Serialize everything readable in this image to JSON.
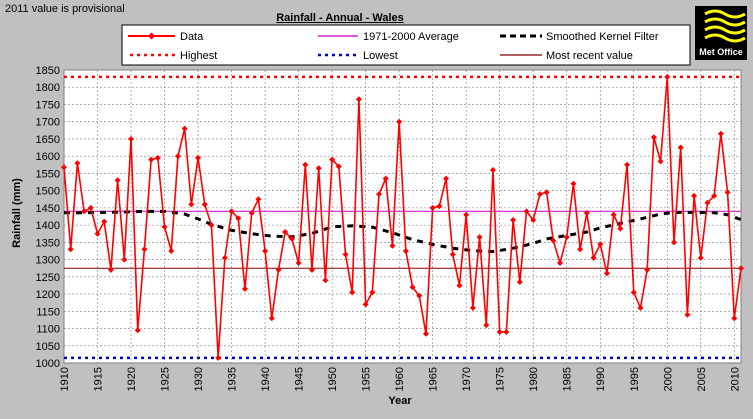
{
  "note": "2011 value is provisional",
  "brand": {
    "name": "Met Office"
  },
  "colors": {
    "data": "#ff0000",
    "average": "#d61bd6",
    "kernel": "#000000",
    "highest": "#ff0000",
    "lowest": "#0000cc",
    "recent": "#800000"
  },
  "chart_data": {
    "type": "line",
    "title": "Rainfall - Annual - Wales",
    "xlabel": "Year",
    "ylabel": "Rainfall (mm)",
    "xlim": [
      1910,
      2011
    ],
    "ylim": [
      1000,
      1850
    ],
    "xticks": [
      1910,
      1915,
      1920,
      1925,
      1930,
      1935,
      1940,
      1945,
      1950,
      1955,
      1960,
      1965,
      1970,
      1975,
      1980,
      1985,
      1990,
      1995,
      2000,
      2005,
      2010
    ],
    "yticks": [
      1000,
      1050,
      1100,
      1150,
      1200,
      1250,
      1300,
      1350,
      1400,
      1450,
      1500,
      1550,
      1600,
      1650,
      1700,
      1750,
      1800,
      1850
    ],
    "legend": [
      "Data",
      "1971-2000 Average",
      "Smoothed Kernel Filter",
      "Highest",
      "Lowest",
      "Most recent value"
    ],
    "grid": true,
    "x": [
      1910,
      1911,
      1912,
      1913,
      1914,
      1915,
      1916,
      1917,
      1918,
      1919,
      1920,
      1921,
      1922,
      1923,
      1924,
      1925,
      1926,
      1927,
      1928,
      1929,
      1930,
      1931,
      1932,
      1933,
      1934,
      1935,
      1936,
      1937,
      1938,
      1939,
      1940,
      1941,
      1942,
      1943,
      1944,
      1945,
      1946,
      1947,
      1948,
      1949,
      1950,
      1951,
      1952,
      1953,
      1954,
      1955,
      1956,
      1957,
      1958,
      1959,
      1960,
      1961,
      1962,
      1963,
      1964,
      1965,
      1966,
      1967,
      1968,
      1969,
      1970,
      1971,
      1972,
      1973,
      1974,
      1975,
      1976,
      1977,
      1978,
      1979,
      1980,
      1981,
      1982,
      1983,
      1984,
      1985,
      1986,
      1987,
      1988,
      1989,
      1990,
      1991,
      1992,
      1993,
      1994,
      1995,
      1996,
      1997,
      1998,
      1999,
      2000,
      2001,
      2002,
      2003,
      2004,
      2005,
      2006,
      2007,
      2008,
      2009,
      2010,
      2011
    ],
    "values": [
      1568,
      1330,
      1580,
      1440,
      1450,
      1375,
      1410,
      1270,
      1530,
      1300,
      1650,
      1095,
      1330,
      1590,
      1595,
      1395,
      1325,
      1600,
      1680,
      1460,
      1595,
      1460,
      1400,
      1015,
      1305,
      1440,
      1420,
      1215,
      1435,
      1475,
      1325,
      1130,
      1270,
      1380,
      1360,
      1290,
      1575,
      1270,
      1565,
      1240,
      1590,
      1570,
      1315,
      1205,
      1765,
      1170,
      1205,
      1490,
      1535,
      1340,
      1700,
      1325,
      1220,
      1195,
      1085,
      1450,
      1455,
      1535,
      1315,
      1225,
      1430,
      1160,
      1365,
      1110,
      1560,
      1090,
      1090,
      1415,
      1235,
      1440,
      1415,
      1490,
      1495,
      1355,
      1290,
      1365,
      1520,
      1330,
      1435,
      1305,
      1345,
      1260,
      1430,
      1390,
      1575,
      1205,
      1160,
      1270,
      1655,
      1585,
      1830,
      1350,
      1625,
      1140,
      1485,
      1305,
      1465,
      1485,
      1665,
      1495,
      1130,
      1275
    ],
    "average": 1440,
    "highest": 1830,
    "lowest": 1015,
    "most_recent": 1275,
    "kernel": [
      [
        1910,
        1436
      ],
      [
        1913,
        1436
      ],
      [
        1916,
        1437
      ],
      [
        1919,
        1438
      ],
      [
        1922,
        1440
      ],
      [
        1925,
        1440
      ],
      [
        1928,
        1432
      ],
      [
        1930,
        1418
      ],
      [
        1932,
        1402
      ],
      [
        1935,
        1385
      ],
      [
        1938,
        1375
      ],
      [
        1941,
        1368
      ],
      [
        1944,
        1366
      ],
      [
        1947,
        1376
      ],
      [
        1950,
        1395
      ],
      [
        1953,
        1398
      ],
      [
        1956,
        1394
      ],
      [
        1959,
        1378
      ],
      [
        1962,
        1358
      ],
      [
        1965,
        1344
      ],
      [
        1968,
        1333
      ],
      [
        1971,
        1326
      ],
      [
        1974,
        1323
      ],
      [
        1977,
        1333
      ],
      [
        1980,
        1347
      ],
      [
        1982,
        1360
      ],
      [
        1985,
        1370
      ],
      [
        1988,
        1380
      ],
      [
        1990,
        1392
      ],
      [
        1993,
        1405
      ],
      [
        1996,
        1418
      ],
      [
        1999,
        1432
      ],
      [
        2001,
        1437
      ],
      [
        2004,
        1437
      ],
      [
        2007,
        1436
      ],
      [
        2009,
        1430
      ],
      [
        2011,
        1416
      ]
    ]
  }
}
